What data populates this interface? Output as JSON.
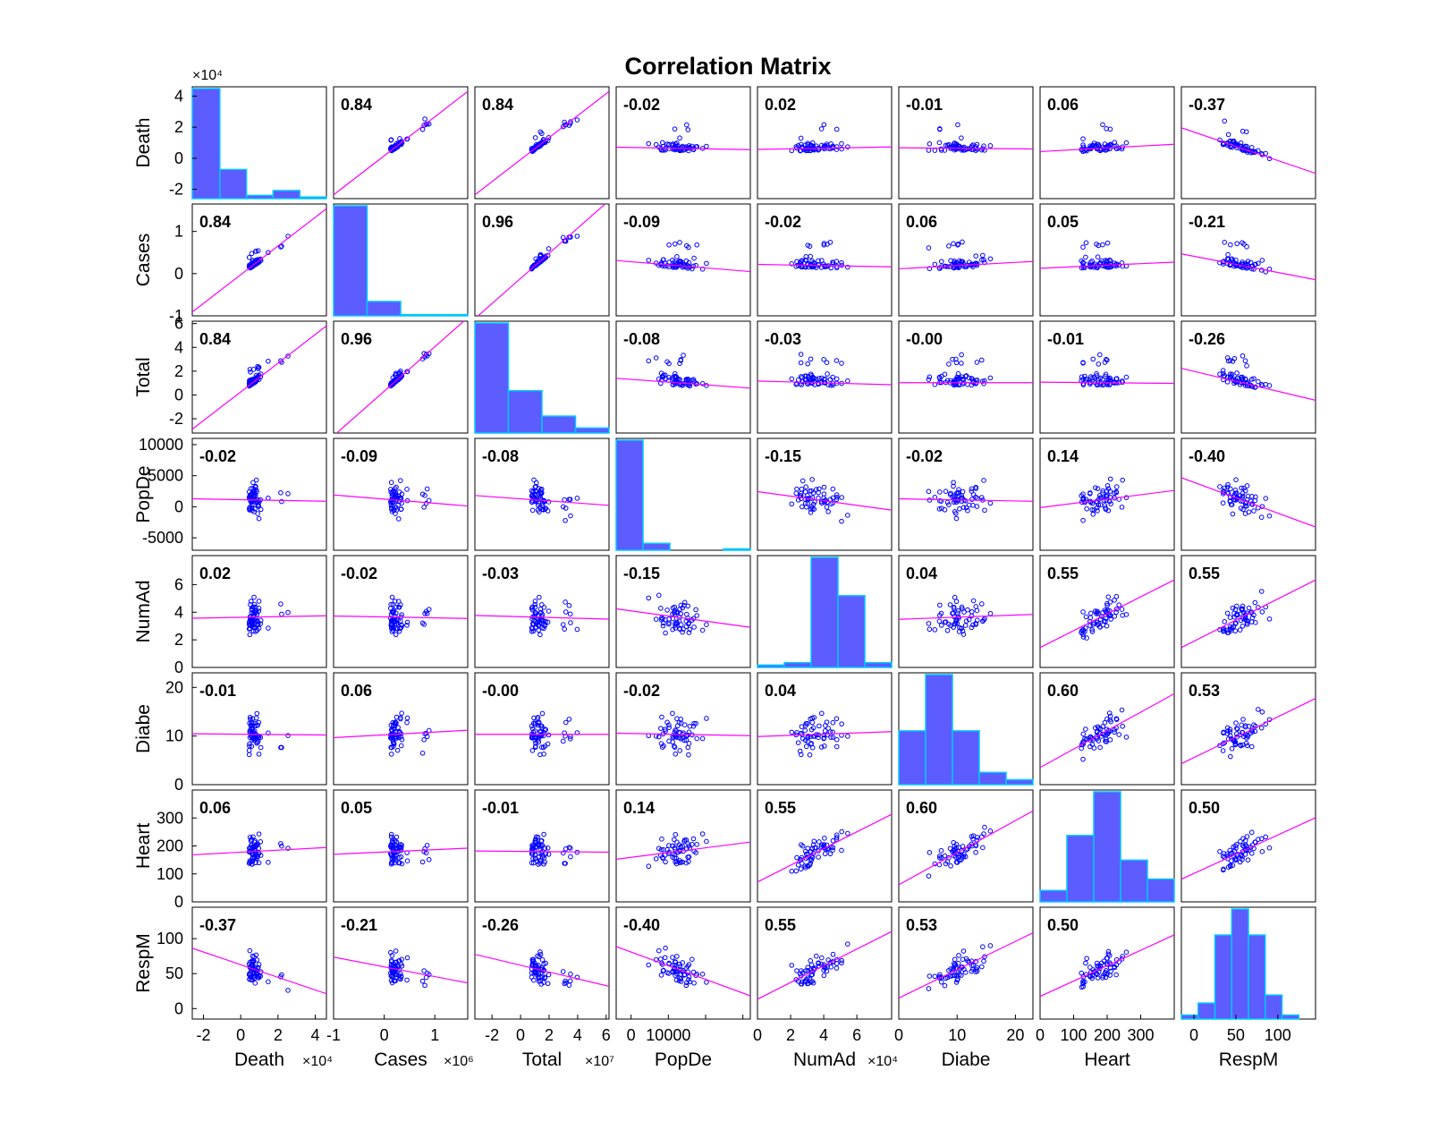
{
  "chart_data": {
    "type": "scatter",
    "title": "Correlation Matrix",
    "variables": [
      "Death",
      "Cases",
      "Total",
      "PopDe",
      "NumAd",
      "Diabe",
      "Heart",
      "RespM"
    ],
    "correlations": [
      [
        "",
        "0.84",
        "0.84",
        "-0.02",
        "0.02",
        "-0.01",
        "0.06",
        "-0.37"
      ],
      [
        "0.84",
        "",
        "0.96",
        "-0.09",
        "-0.02",
        "0.06",
        "0.05",
        "-0.21"
      ],
      [
        "0.84",
        "0.96",
        "",
        "-0.08",
        "-0.03",
        "-0.00",
        "-0.01",
        "-0.26"
      ],
      [
        "-0.02",
        "-0.09",
        "-0.08",
        "",
        "-0.15",
        "-0.02",
        "0.14",
        "-0.40"
      ],
      [
        "0.02",
        "-0.02",
        "-0.03",
        "-0.15",
        "",
        "0.04",
        "0.55",
        "0.55"
      ],
      [
        "-0.01",
        "0.06",
        "-0.00",
        "-0.02",
        "0.04",
        "",
        "0.60",
        "0.53"
      ],
      [
        "0.06",
        "0.05",
        "-0.01",
        "0.14",
        "0.55",
        "0.60",
        "",
        "0.50"
      ],
      [
        "-0.37",
        "-0.21",
        "-0.26",
        "-0.40",
        "0.55",
        "0.53",
        "0.50",
        ""
      ]
    ],
    "axes": [
      {
        "name": "Death",
        "range": [
          -2.6,
          4.6
        ],
        "ticks": [
          -2,
          0,
          2,
          4
        ],
        "exponent": "×10⁴"
      },
      {
        "name": "Cases",
        "range": [
          -1.0,
          1.65
        ],
        "ticks": [
          -1,
          0,
          1
        ],
        "exponent": "×10⁶"
      },
      {
        "name": "Total",
        "range": [
          -3.2,
          6.2
        ],
        "ticks": [
          -2,
          0,
          2,
          4,
          6
        ],
        "exponent": "×10⁷"
      },
      {
        "name": "PopDe",
        "range": [
          -7000,
          11000
        ],
        "ticks": [
          -5000,
          0,
          5000,
          10000
        ],
        "exponent": ""
      },
      {
        "name": "NumAd",
        "range": [
          0,
          8.1
        ],
        "ticks": [
          0,
          2,
          4,
          6
        ],
        "exponent": "×10⁴"
      },
      {
        "name": "Diabe",
        "range": [
          0,
          23
        ],
        "ticks": [
          0,
          10,
          20
        ],
        "exponent": ""
      },
      {
        "name": "Heart",
        "range": [
          0,
          400
        ],
        "ticks": [
          0,
          100,
          200,
          300
        ],
        "exponent": ""
      },
      {
        "name": "RespM",
        "range": [
          -15,
          145
        ],
        "ticks": [
          0,
          50,
          100
        ],
        "exponent": ""
      }
    ],
    "histograms": [
      {
        "edges": [
          -2.1,
          -0.6,
          0.85,
          2.3,
          3.75,
          5.2
        ],
        "counts": [
          68,
          18,
          2,
          5,
          1
        ]
      },
      {
        "edges": [
          -0.1,
          0.32,
          0.74,
          1.16,
          1.58
        ],
        "counts": [
          92,
          12,
          1,
          1
        ]
      },
      {
        "edges": [
          -0.5,
          1.0,
          2.5,
          4.0,
          5.5
        ],
        "counts": [
          65,
          25,
          10,
          3
        ]
      },
      {
        "edges": [
          0,
          8000,
          16000,
          24000,
          32000,
          40000
        ],
        "counts": [
          80,
          5,
          0,
          0,
          1
        ]
      },
      {
        "edges": [
          0,
          1.5,
          3.0,
          4.5,
          6.0,
          7.5
        ],
        "counts": [
          1,
          2,
          46,
          30,
          2
        ]
      },
      {
        "edges": [
          3,
          7,
          11,
          15,
          19,
          23
        ],
        "counts": [
          22,
          45,
          22,
          5,
          2
        ]
      },
      {
        "edges": [
          40,
          100,
          160,
          220,
          280,
          340
        ],
        "counts": [
          6,
          35,
          58,
          22,
          12
        ]
      },
      {
        "edges": [
          -15,
          5,
          25,
          45,
          65,
          85,
          105,
          125,
          145
        ],
        "counts": [
          2,
          8,
          42,
          55,
          42,
          12,
          2,
          0
        ]
      }
    ],
    "xtick_labels": [
      [
        "-2",
        "0",
        "2",
        "4"
      ],
      [
        "-1",
        "0",
        "1"
      ],
      [
        "-2",
        "0",
        "2",
        "4",
        "6"
      ],
      [
        "0",
        "10000"
      ],
      [
        "0",
        "2",
        "4",
        "6"
      ],
      [
        "0",
        "10",
        "20"
      ],
      [
        "0",
        "100",
        "200",
        "300"
      ],
      [
        "0",
        "50",
        "100"
      ]
    ],
    "ytick_labels": [
      [
        "-2",
        "0",
        "2",
        "4"
      ],
      [
        "-1",
        "0",
        "1"
      ],
      [
        "-2",
        "0",
        "2",
        "4",
        "6"
      ],
      [
        "-5000",
        "0",
        "5000",
        "10000"
      ],
      [
        "0",
        "2",
        "4",
        "6"
      ],
      [
        "0",
        "10",
        "20"
      ],
      [
        "0",
        "100",
        "200",
        "300"
      ],
      [
        "0",
        "50",
        "100"
      ]
    ],
    "colors": {
      "points": "#0000ff",
      "fit_line": "#ff00ff",
      "bars": "#5c5cff",
      "bar_edge": "#00c8ff"
    },
    "grid": false,
    "legend": "none"
  }
}
